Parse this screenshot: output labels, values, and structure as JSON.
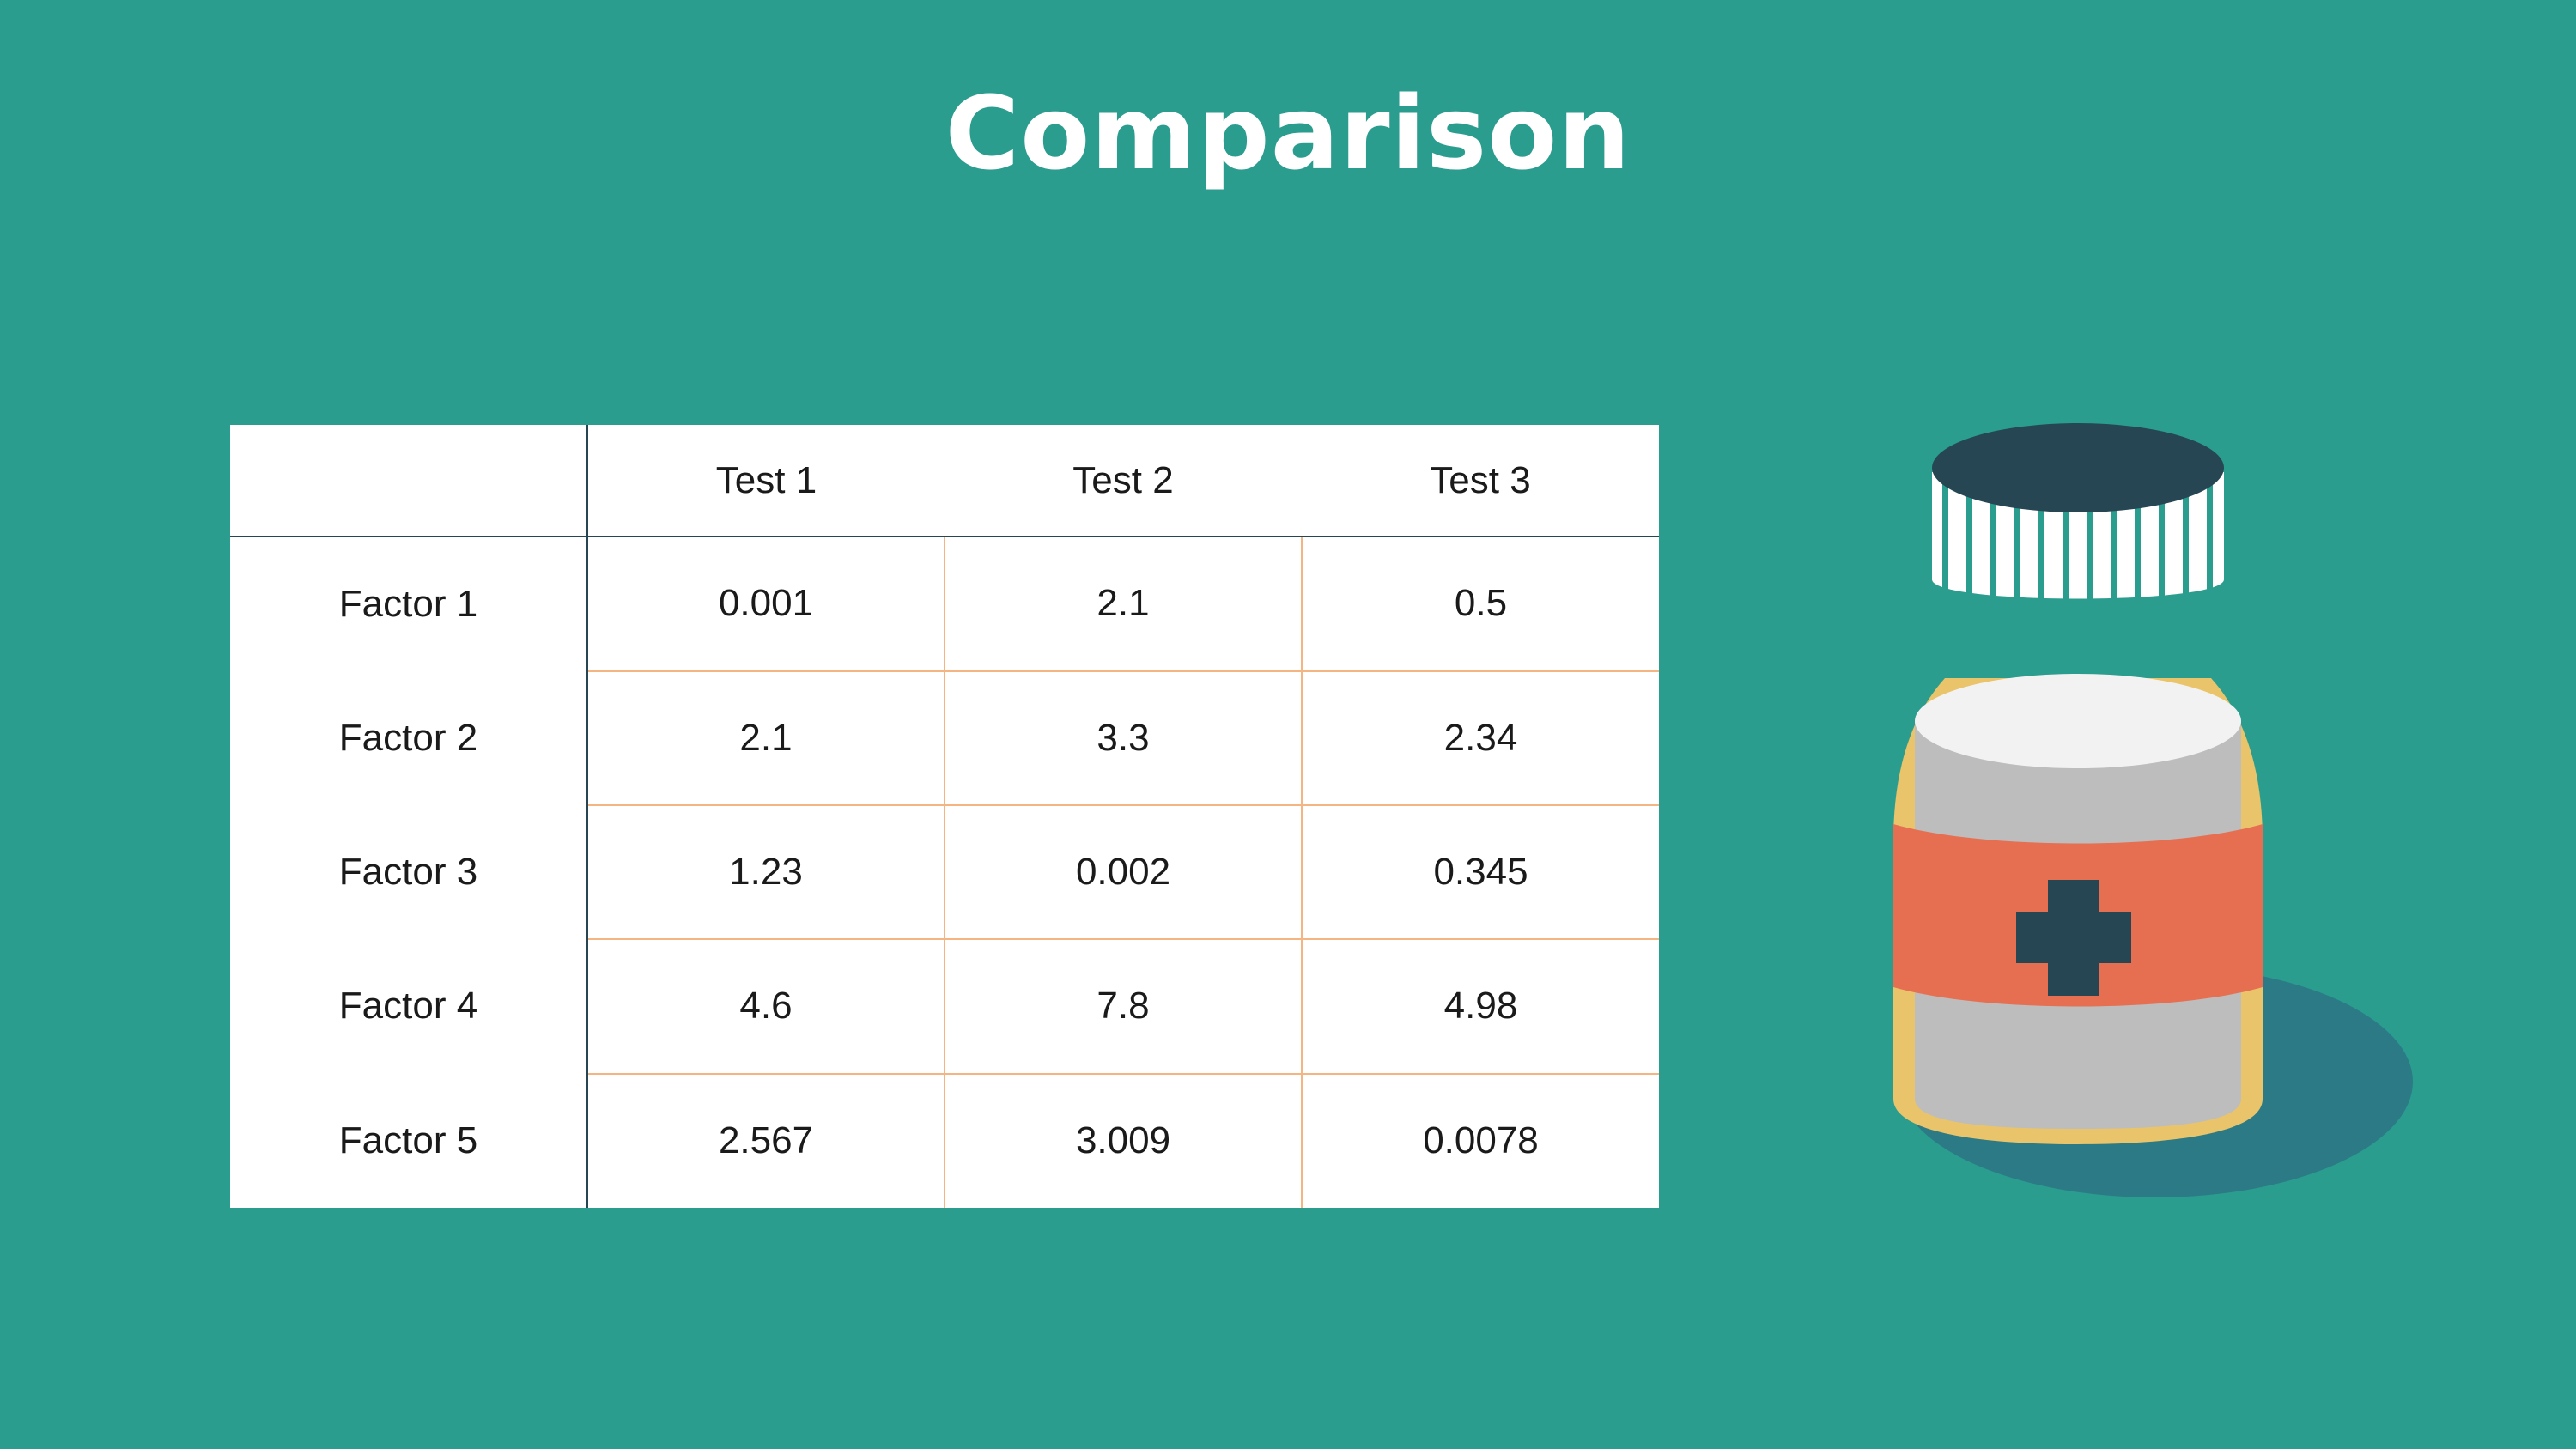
{
  "slide": {
    "title": "Comparison",
    "background_color": "#2a9d8f"
  },
  "table": {
    "columns": [
      "",
      "Test 1",
      "Test 2",
      "Test 3"
    ],
    "rows": [
      {
        "label": "Factor 1",
        "values": [
          "0.001",
          "2.1",
          "0.5"
        ]
      },
      {
        "label": "Factor 2",
        "values": [
          "2.1",
          "3.3",
          "2.34"
        ]
      },
      {
        "label": "Factor 3",
        "values": [
          "1.23",
          "0.002",
          "0.345"
        ]
      },
      {
        "label": "Factor 4",
        "values": [
          "4.6",
          "7.8",
          "4.98"
        ]
      },
      {
        "label": "Factor 5",
        "values": [
          "2.567",
          "3.009",
          "0.0078"
        ]
      }
    ],
    "header_line_color": "#264653",
    "grid_line_color": "#f4b582"
  },
  "illustration": {
    "icon": "medicine-bottle-icon",
    "cap_color": "#264653",
    "ring_color": "#ffffff",
    "body_color": "#e9c46a",
    "label_band_color": "#e76f51",
    "cross_color": "#264653",
    "shadow_color": "#2c7a85"
  }
}
